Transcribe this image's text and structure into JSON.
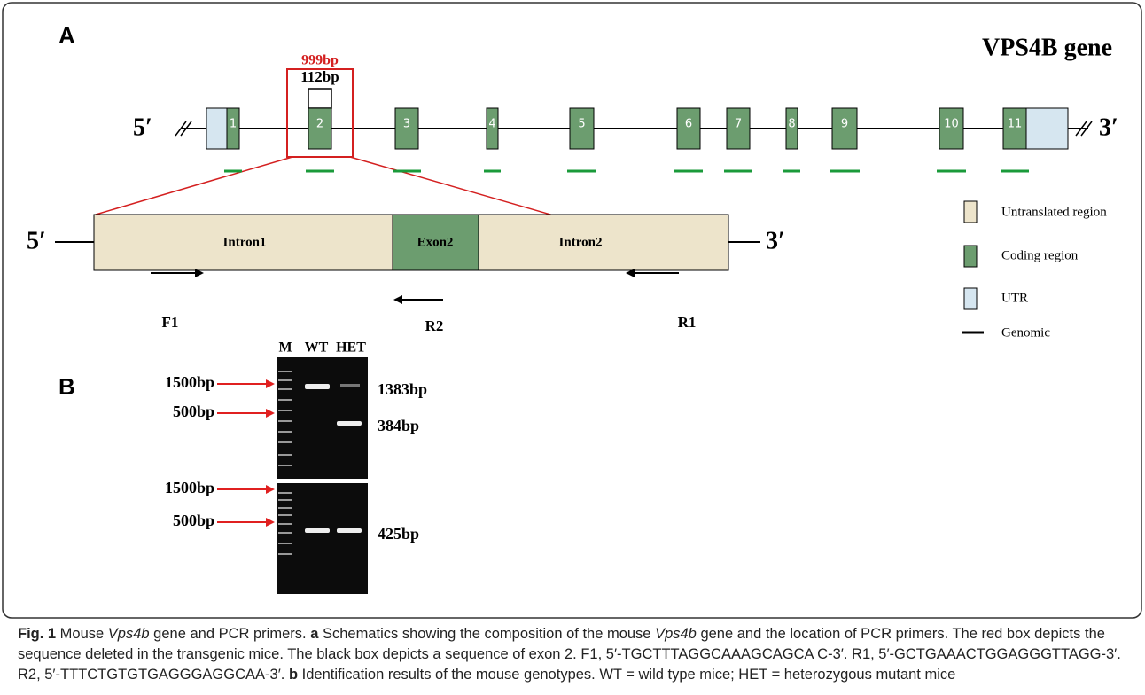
{
  "figure": {
    "panel_a": "A",
    "panel_b": "B",
    "gene_title": "VPS4B gene",
    "red_box_label": "999bp",
    "black_box_label": "112bp",
    "five_prime": "5′",
    "three_prime": "3′",
    "exons": [
      "1",
      "2",
      "3",
      "4",
      "5",
      "6",
      "7",
      "8",
      "9",
      "10",
      "11"
    ],
    "detail": {
      "five_prime": "5′",
      "three_prime": "3′",
      "intron1": "Intron1",
      "exon2": "Exon2",
      "intron2": "Intron2",
      "primers": [
        "F1",
        "R2",
        "R1"
      ]
    },
    "legend": [
      "Untranslated region",
      "Coding region",
      "UTR",
      "Genomic"
    ],
    "gel": {
      "lanes": [
        "M",
        "WT",
        "HET"
      ],
      "top_markers": [
        "1500bp",
        "500bp"
      ],
      "top_sizes": [
        "1383bp",
        "384bp"
      ],
      "bottom_markers": [
        "1500bp",
        "500bp"
      ],
      "bottom_sizes": [
        "425bp"
      ]
    }
  },
  "caption": {
    "runs": [
      "Fig. 1",
      " Mouse ",
      "Vps4b",
      " gene and PCR primers. ",
      "a",
      " Schematics showing the composition of the mouse ",
      "Vps4b",
      " gene and the location of PCR primers. The red box depicts the sequence deleted in the transgenic mice. The black box depicts a sequence of exon 2. F1, 5′-TGCTTTAGGCAAAGCAGCA C-3′. R1, 5′-GCTGAAACTGGAGGGTTAGG-3′. R2, 5′-TTTCTGTGTGAGGGAGGCAA-3′. ",
      "b",
      " Identification results of the mouse genotypes. WT = wild type mice; HET = heterozygous mutant mice"
    ]
  }
}
